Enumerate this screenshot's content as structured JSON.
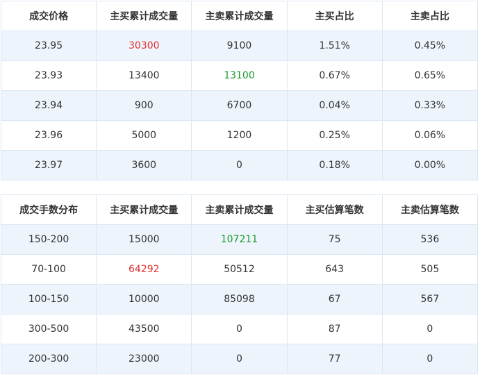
{
  "price_table": {
    "headers": [
      "成交价格",
      "主买累计成交量",
      "主卖累计成交量",
      "主买占比",
      "主卖占比"
    ],
    "rows": [
      {
        "price": "23.95",
        "buy_vol": "30300",
        "sell_vol": "9100",
        "buy_pct": "1.51%",
        "sell_pct": "0.45%"
      },
      {
        "price": "23.93",
        "buy_vol": "13400",
        "sell_vol": "13100",
        "buy_pct": "0.67%",
        "sell_pct": "0.65%"
      },
      {
        "price": "23.94",
        "buy_vol": "900",
        "sell_vol": "6700",
        "buy_pct": "0.04%",
        "sell_pct": "0.33%"
      },
      {
        "price": "23.96",
        "buy_vol": "5000",
        "sell_vol": "1200",
        "buy_pct": "0.25%",
        "sell_pct": "0.06%"
      },
      {
        "price": "23.97",
        "buy_vol": "3600",
        "sell_vol": "0",
        "buy_pct": "0.18%",
        "sell_pct": "0.00%"
      }
    ]
  },
  "lot_table": {
    "headers": [
      "成交手数分布",
      "主买累计成交量",
      "主卖累计成交量",
      "主买估算笔数",
      "主卖估算笔数"
    ],
    "rows": [
      {
        "range": "150-200",
        "buy_vol": "15000",
        "sell_vol": "107211",
        "buy_cnt": "75",
        "sell_cnt": "536"
      },
      {
        "range": "70-100",
        "buy_vol": "64292",
        "sell_vol": "50512",
        "buy_cnt": "643",
        "sell_cnt": "505"
      },
      {
        "range": "100-150",
        "buy_vol": "10000",
        "sell_vol": "85098",
        "buy_cnt": "67",
        "sell_cnt": "567"
      },
      {
        "range": "300-500",
        "buy_vol": "43500",
        "sell_vol": "0",
        "buy_cnt": "87",
        "sell_cnt": "0"
      },
      {
        "range": "200-300",
        "buy_vol": "23000",
        "sell_vol": "0",
        "buy_cnt": "77",
        "sell_cnt": "0"
      }
    ]
  },
  "colors": {
    "highlight_up": "#e03030",
    "highlight_down": "#1a9a2a",
    "row_alt_bg": "#eef4fc",
    "border": "#dbe6f3"
  }
}
